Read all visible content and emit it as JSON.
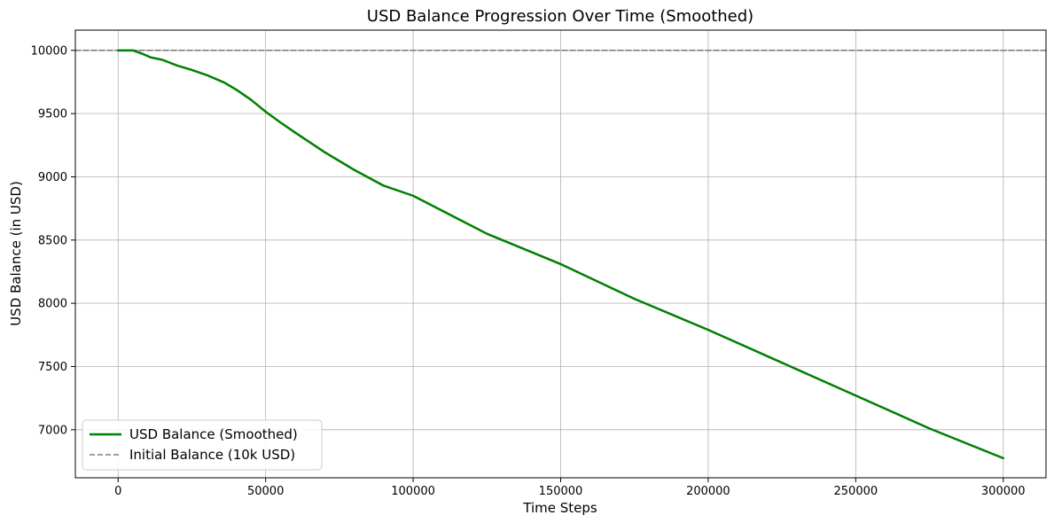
{
  "chart_data": {
    "type": "line",
    "title": "USD Balance Progression Over Time (Smoothed)",
    "xlabel": "Time Steps",
    "ylabel": "USD Balance (in USD)",
    "xlim": [
      -14500,
      314500
    ],
    "ylim": [
      6620,
      10160
    ],
    "xticks": [
      0,
      50000,
      100000,
      150000,
      200000,
      250000,
      300000
    ],
    "xtick_labels": [
      "0",
      "50000",
      "100000",
      "150000",
      "200000",
      "250000",
      "300000"
    ],
    "yticks": [
      7000,
      7500,
      8000,
      8500,
      9000,
      9500,
      10000
    ],
    "ytick_labels": [
      "7000",
      "7500",
      "8000",
      "8500",
      "9000",
      "9500",
      "10000"
    ],
    "grid": true,
    "legend_position": "lower-left",
    "series": [
      {
        "name": "USD Balance (Smoothed)",
        "color": "#008000",
        "style": "solid",
        "x": [
          0,
          5000,
          8000,
          11000,
          15000,
          20000,
          25000,
          30000,
          36000,
          40000,
          45000,
          50000,
          55000,
          60000,
          70000,
          80000,
          90000,
          100000,
          125000,
          150000,
          175000,
          200000,
          225000,
          250000,
          275000,
          300000
        ],
        "y": [
          10000,
          10000,
          9975,
          9945,
          9925,
          9880,
          9845,
          9805,
          9745,
          9690,
          9610,
          9515,
          9430,
          9350,
          9195,
          9055,
          8930,
          8850,
          8550,
          8310,
          8035,
          7790,
          7530,
          7270,
          7010,
          6775
        ]
      },
      {
        "name": "Initial Balance (10k USD)",
        "color": "#808080",
        "style": "dashed",
        "x": [
          -14500,
          314500
        ],
        "y": [
          10000,
          10000
        ]
      }
    ]
  }
}
